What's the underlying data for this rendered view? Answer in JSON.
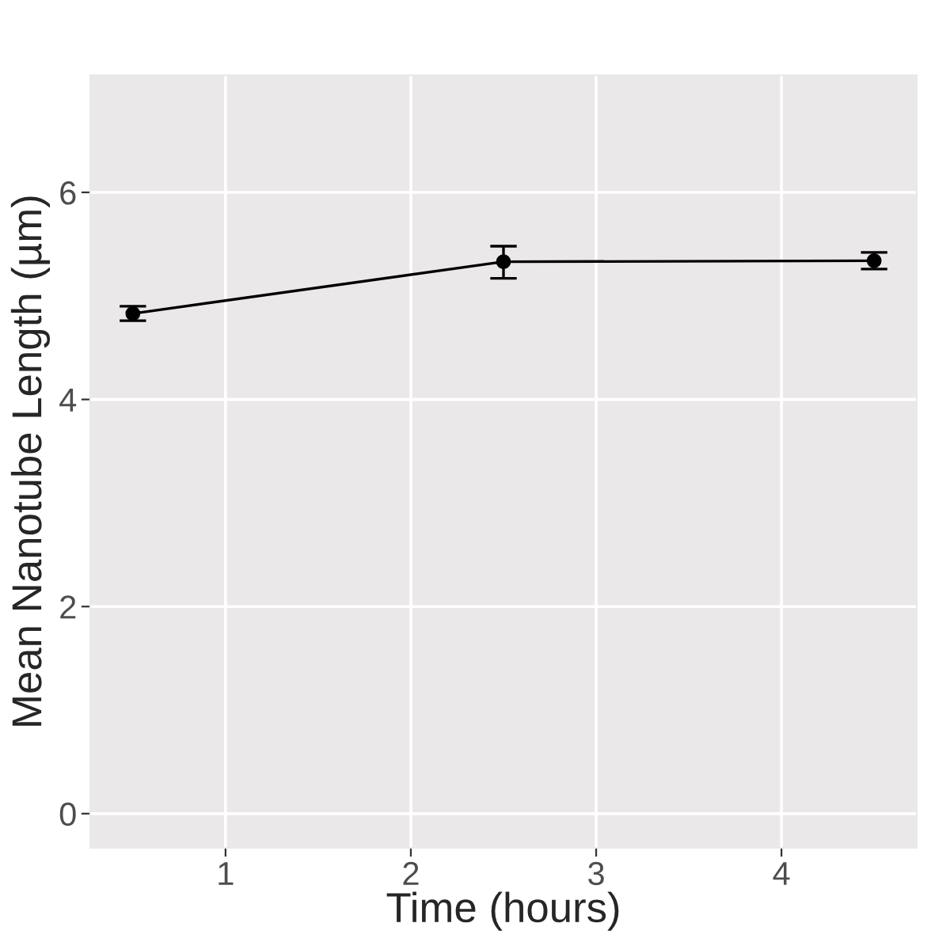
{
  "chart_data": {
    "type": "line",
    "xlabel": "Time (hours)",
    "ylabel": "Mean Nanotube Length (µm)",
    "x": [
      0.5,
      2.5,
      4.5
    ],
    "series": [
      {
        "color": "#000000",
        "values": [
          4.83,
          5.33,
          5.34
        ],
        "errors": [
          [
            4.76,
            4.9
          ],
          [
            5.17,
            5.48
          ],
          [
            5.26,
            5.42
          ]
        ]
      }
    ],
    "xlim": [
      0.27,
      4.73
    ],
    "ylim": [
      -0.33,
      7.13
    ],
    "xticks": [
      1,
      2,
      3,
      4
    ],
    "yticks": [
      0,
      2,
      4,
      6
    ],
    "grid": true,
    "marker": "circle",
    "line_style": "solid",
    "legend": false
  }
}
